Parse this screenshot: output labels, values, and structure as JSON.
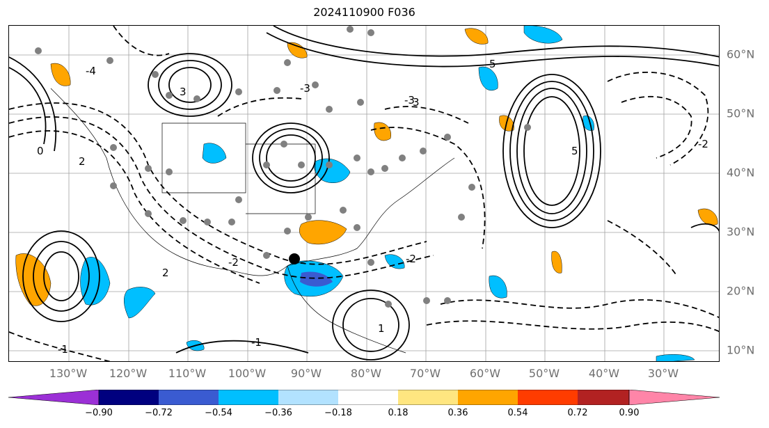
{
  "title": "2024110900 F036",
  "lon_labels": [
    "130°W",
    "120°W",
    "110°W",
    "100°W",
    "90°W",
    "80°W",
    "70°W",
    "60°W",
    "50°W",
    "40°W",
    "30°W"
  ],
  "lat_labels": [
    "60°N",
    "50°N",
    "40°N",
    "30°N",
    "20°N",
    "10°N"
  ],
  "contour_labels": [
    "-4",
    "-3",
    "-3",
    "-2",
    "-2",
    "-2",
    "-1",
    "-1",
    "1",
    "2",
    "2",
    "3",
    "3",
    "5",
    "5",
    "0"
  ],
  "colorbar": {
    "ticks": [
      "−0.90",
      "−0.72",
      "−0.54",
      "−0.36",
      "−0.18",
      "0.18",
      "0.36",
      "0.54",
      "0.72",
      "0.90"
    ],
    "colors": [
      "#9b30d6",
      "#00007f",
      "#3a5bd1",
      "#00bfff",
      "#b2e2ff",
      "#ffffff",
      "#ffe680",
      "#ffa500",
      "#ff3c00",
      "#b22222",
      "#ff85a8"
    ]
  },
  "fill_colors": {
    "negative_light": "#00bfff",
    "negative_mid": "#3a5bd1",
    "positive": "#ffa500"
  }
}
